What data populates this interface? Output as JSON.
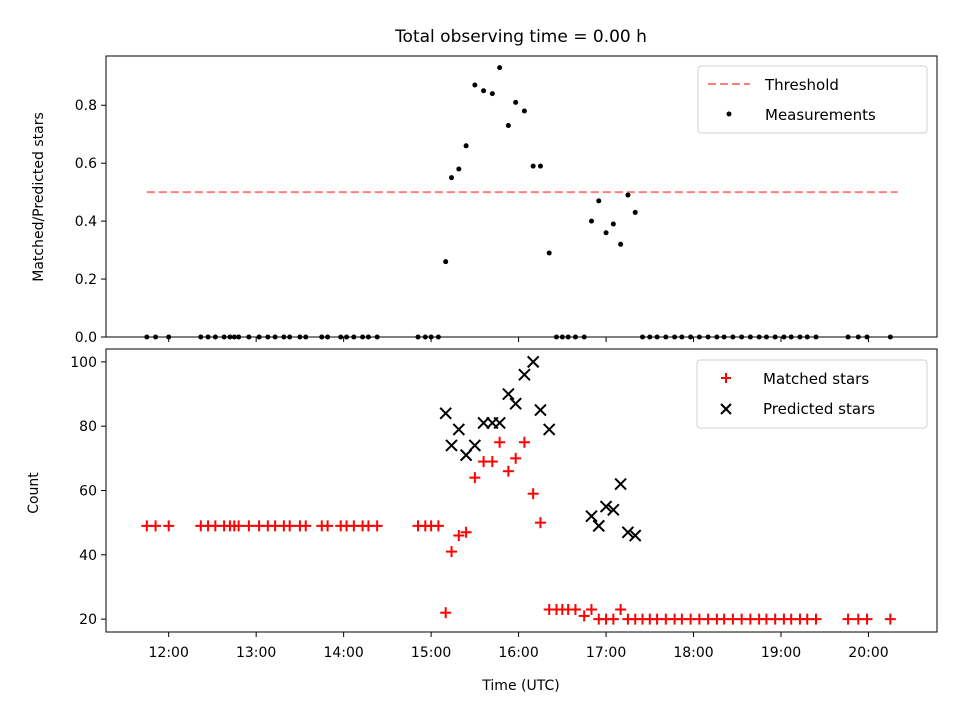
{
  "chart_data": [
    {
      "type": "scatter",
      "title": "Total observing time = 0.00 h",
      "xlabel": "",
      "ylabel": "Matched/Predicted stars",
      "xlim": [
        "11:17",
        "20:47"
      ],
      "ylim": [
        0,
        0.97
      ],
      "yticks": [
        0.0,
        0.2,
        0.4,
        0.6,
        0.8
      ],
      "ytick_labels": [
        "0.0",
        "0.2",
        "0.4",
        "0.6",
        "0.8"
      ],
      "grid": false,
      "legend_position": "top-right",
      "series": [
        {
          "name": "Threshold",
          "kind": "dashed-line",
          "color": "#ff7f7f",
          "x": [
            "11:45",
            "20:20"
          ],
          "y": [
            0.5,
            0.5
          ]
        },
        {
          "name": "Measurements",
          "kind": "points",
          "color": "#000000",
          "x": [
            "11:45",
            "11:51",
            "12:00",
            "12:22",
            "12:27",
            "12:32",
            "12:38",
            "12:42",
            "12:45",
            "12:48",
            "12:55",
            "13:02",
            "13:08",
            "13:13",
            "13:19",
            "13:23",
            "13:30",
            "13:34",
            "13:45",
            "13:49",
            "13:58",
            "14:02",
            "14:07",
            "14:13",
            "14:17",
            "14:23",
            "14:51",
            "14:56",
            "15:00",
            "15:05",
            "15:10",
            "15:14",
            "15:19",
            "15:24",
            "15:30",
            "15:36",
            "15:42",
            "15:47",
            "15:53",
            "15:58",
            "16:04",
            "16:10",
            "16:15",
            "16:21",
            "16:26",
            "16:30",
            "16:34",
            "16:39",
            "16:45",
            "16:50",
            "16:55",
            "17:00",
            "17:05",
            "17:10",
            "17:15",
            "17:20",
            "17:25",
            "17:30",
            "17:35",
            "17:41",
            "17:47",
            "17:52",
            "17:58",
            "18:04",
            "18:10",
            "18:16",
            "18:21",
            "18:27",
            "18:33",
            "18:39",
            "18:45",
            "18:50",
            "18:56",
            "19:02",
            "19:07",
            "19:13",
            "19:18",
            "19:24",
            "19:46",
            "19:53",
            "19:59",
            "20:15"
          ],
          "y": [
            0,
            0,
            0,
            0,
            0,
            0,
            0,
            0,
            0,
            0,
            0,
            0,
            0,
            0,
            0,
            0,
            0,
            0,
            0,
            0,
            0,
            0,
            0,
            0,
            0,
            0,
            0,
            0,
            0,
            0,
            0.26,
            0.55,
            0.58,
            0.66,
            0.87,
            0.85,
            0.84,
            0.93,
            0.73,
            0.81,
            0.78,
            0.59,
            0.59,
            0.29,
            0,
            0,
            0,
            0,
            0,
            0.4,
            0.47,
            0.36,
            0.39,
            0.32,
            0.49,
            0.43,
            0,
            0,
            0,
            0,
            0,
            0,
            0,
            0,
            0,
            0,
            0,
            0,
            0,
            0,
            0,
            0,
            0,
            0,
            0,
            0,
            0,
            0,
            0,
            0,
            0,
            0
          ]
        }
      ]
    },
    {
      "type": "scatter",
      "title": "",
      "xlabel": "Time (UTC)",
      "ylabel": "Count",
      "xlim": [
        "11:17",
        "20:47"
      ],
      "ylim": [
        16,
        104
      ],
      "yticks": [
        20,
        40,
        60,
        80,
        100
      ],
      "ytick_labels": [
        "20",
        "40",
        "60",
        "80",
        "100"
      ],
      "xticks": [
        "12:00",
        "13:00",
        "14:00",
        "15:00",
        "16:00",
        "17:00",
        "18:00",
        "19:00",
        "20:00"
      ],
      "xtick_labels": [
        "12:00",
        "13:00",
        "14:00",
        "15:00",
        "16:00",
        "17:00",
        "18:00",
        "19:00",
        "20:00"
      ],
      "grid": false,
      "legend_position": "top-right",
      "series": [
        {
          "name": "Matched stars",
          "marker": "+",
          "color": "#ff0000",
          "x": [
            "11:45",
            "11:51",
            "12:00",
            "12:22",
            "12:27",
            "12:32",
            "12:38",
            "12:42",
            "12:45",
            "12:48",
            "12:55",
            "13:02",
            "13:08",
            "13:13",
            "13:19",
            "13:23",
            "13:30",
            "13:34",
            "13:45",
            "13:49",
            "13:58",
            "14:02",
            "14:07",
            "14:13",
            "14:17",
            "14:23",
            "14:51",
            "14:56",
            "15:00",
            "15:05",
            "15:10",
            "15:14",
            "15:19",
            "15:24",
            "15:30",
            "15:36",
            "15:42",
            "15:47",
            "15:53",
            "15:58",
            "16:04",
            "16:10",
            "16:15",
            "16:21",
            "16:26",
            "16:30",
            "16:34",
            "16:39",
            "16:45",
            "16:50",
            "16:55",
            "17:00",
            "17:05",
            "17:10",
            "17:15",
            "17:20",
            "17:25",
            "17:30",
            "17:35",
            "17:41",
            "17:47",
            "17:52",
            "17:58",
            "18:04",
            "18:10",
            "18:16",
            "18:21",
            "18:27",
            "18:33",
            "18:39",
            "18:45",
            "18:50",
            "18:56",
            "19:02",
            "19:07",
            "19:13",
            "19:18",
            "19:24",
            "19:46",
            "19:53",
            "19:59",
            "20:15"
          ],
          "y": [
            49,
            49,
            49,
            49,
            49,
            49,
            49,
            49,
            49,
            49,
            49,
            49,
            49,
            49,
            49,
            49,
            49,
            49,
            49,
            49,
            49,
            49,
            49,
            49,
            49,
            49,
            49,
            49,
            49,
            49,
            22,
            41,
            46,
            47,
            64,
            69,
            69,
            75,
            66,
            70,
            75,
            59,
            50,
            23,
            23,
            23,
            23,
            23,
            21,
            23,
            20,
            20,
            20,
            23,
            20,
            20,
            20,
            20,
            20,
            20,
            20,
            20,
            20,
            20,
            20,
            20,
            20,
            20,
            20,
            20,
            20,
            20,
            20,
            20,
            20,
            20,
            20,
            20,
            20,
            20,
            20,
            20
          ]
        },
        {
          "name": "Predicted stars",
          "marker": "x",
          "color": "#000000",
          "x": [
            "15:10",
            "15:14",
            "15:19",
            "15:24",
            "15:30",
            "15:36",
            "15:42",
            "15:47",
            "15:53",
            "15:58",
            "16:04",
            "16:10",
            "16:15",
            "16:21",
            "16:50",
            "16:55",
            "17:00",
            "17:05",
            "17:10",
            "17:15",
            "17:20"
          ],
          "y": [
            84,
            74,
            79,
            71,
            74,
            81,
            81,
            81,
            90,
            87,
            96,
            100,
            85,
            79,
            52,
            49,
            55,
            54,
            62,
            47,
            46
          ]
        }
      ]
    }
  ]
}
